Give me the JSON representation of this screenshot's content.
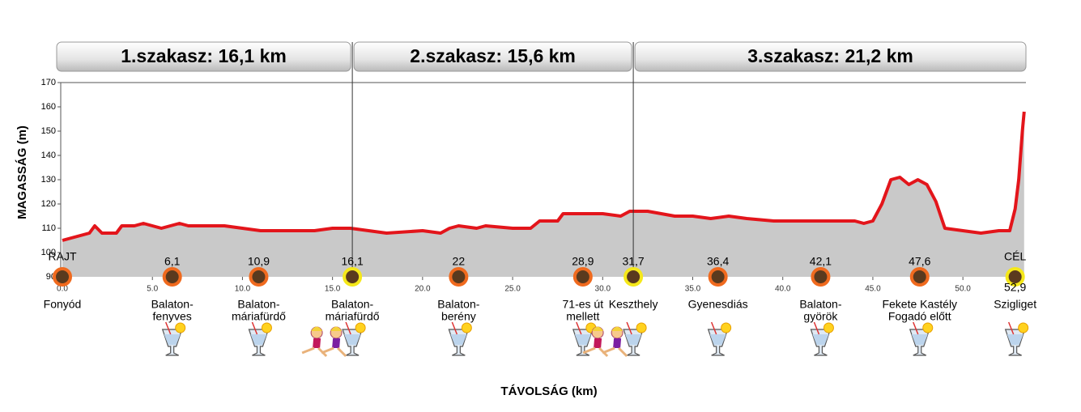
{
  "chart_data": {
    "type": "line",
    "xlabel": "TÁVOLSÁG (km)",
    "ylabel": "MAGASSÁG (m)",
    "xlim": [
      0,
      53.5
    ],
    "ylim": [
      90,
      170
    ],
    "yticks": [
      90,
      100,
      110,
      120,
      130,
      140,
      150,
      160,
      170
    ],
    "xticks": [
      {
        "value": 0,
        "label": "0.0"
      },
      {
        "value": 5,
        "label": "5.0"
      },
      {
        "value": 10,
        "label": "10.0"
      },
      {
        "value": 15,
        "label": "15.0"
      },
      {
        "value": 20,
        "label": "20.0"
      },
      {
        "value": 25,
        "label": "25.0"
      },
      {
        "value": 30,
        "label": "30.0"
      },
      {
        "value": 35,
        "label": "35.0"
      },
      {
        "value": 40,
        "label": "40.0"
      },
      {
        "value": 45,
        "label": "45.0"
      },
      {
        "value": 50,
        "label": "50.0"
      }
    ],
    "fill_color": "#c9c9c9",
    "series": [
      {
        "color": "#e3151b",
        "x": [
          0,
          0.5,
          1.5,
          1.8,
          2.2,
          3,
          3.3,
          4,
          4.5,
          5,
          5.5,
          6.5,
          7,
          9,
          10,
          11,
          14,
          15,
          16,
          18,
          20,
          21,
          21.5,
          22,
          23,
          23.5,
          25,
          26,
          26.5,
          27.5,
          27.8,
          30,
          31,
          31.5,
          32.5,
          34,
          35,
          36,
          37,
          38,
          39.5,
          44,
          44.5,
          45,
          45.5,
          46,
          46.5,
          47,
          47.5,
          48,
          48.5,
          49,
          50,
          51,
          52,
          52.6,
          52.9,
          53.1,
          53.3,
          53.4
        ],
        "values": [
          105,
          106,
          108,
          111,
          108,
          108,
          111,
          111,
          112,
          111,
          110,
          112,
          111,
          111,
          110,
          109,
          109,
          110,
          110,
          108,
          109,
          108,
          110,
          111,
          110,
          111,
          110,
          110,
          113,
          113,
          116,
          116,
          115,
          117,
          117,
          115,
          115,
          114,
          115,
          114,
          113,
          113,
          112,
          113,
          120,
          130,
          131,
          128,
          130,
          128,
          121,
          110,
          109,
          108,
          109,
          109,
          118,
          130,
          150,
          158
        ]
      }
    ],
    "sections": [
      {
        "label": "1.szakasz: 16,1 km",
        "length": 16.1
      },
      {
        "label": "2.szakasz: 15,6 km",
        "length": 15.6
      },
      {
        "label": "3.szakasz: 21,2 km",
        "length": 21.2
      }
    ],
    "waypoints": [
      {
        "km": 0,
        "flag": "RAJT",
        "place": [
          "Fonyód"
        ],
        "marker": "#f06a1e",
        "drink": false,
        "runners": false
      },
      {
        "km": 6.1,
        "km_label": "6,1",
        "place": [
          "Balaton-",
          "fenyves"
        ],
        "marker": "#f06a1e",
        "drink": true,
        "runners": false
      },
      {
        "km": 10.9,
        "km_label": "10,9",
        "place": [
          "Balaton-",
          "máriafürdő"
        ],
        "marker": "#f06a1e",
        "drink": true,
        "runners": false
      },
      {
        "km": 16.1,
        "km_label": "16,1",
        "place": [
          "Balaton-",
          "máriafürdő"
        ],
        "marker": "#f5e81a",
        "drink": true,
        "runners": true
      },
      {
        "km": 22,
        "place": [
          "Balaton-",
          "berény"
        ],
        "marker": "#f06a1e",
        "drink": true,
        "runners": false
      },
      {
        "km": 28.9,
        "km_label": "28,9",
        "place": [
          "71-es út",
          "mellett"
        ],
        "marker": "#f06a1e",
        "drink": true,
        "runners": false
      },
      {
        "km": 31.7,
        "km_label": "31,7",
        "place": [
          "Keszthely"
        ],
        "marker": "#f5e81a",
        "drink": true,
        "runners": true
      },
      {
        "km": 36.4,
        "km_label": "36,4",
        "place": [
          "Gyenesdiás"
        ],
        "marker": "#f06a1e",
        "drink": true,
        "runners": false
      },
      {
        "km": 42.1,
        "km_label": "42,1",
        "place": [
          "Balaton-",
          "györök"
        ],
        "marker": "#f06a1e",
        "drink": true,
        "runners": false
      },
      {
        "km": 47.6,
        "km_label": "47,6",
        "place": [
          "Fekete Kastély",
          "Fogadó előtt"
        ],
        "marker": "#f06a1e",
        "drink": true,
        "runners": false
      },
      {
        "km": 52.9,
        "km_label": "52,9",
        "flag": "CÉL",
        "place": [
          "Szigliget"
        ],
        "marker": "#f5e81a",
        "drink": true,
        "runners": false
      }
    ]
  }
}
